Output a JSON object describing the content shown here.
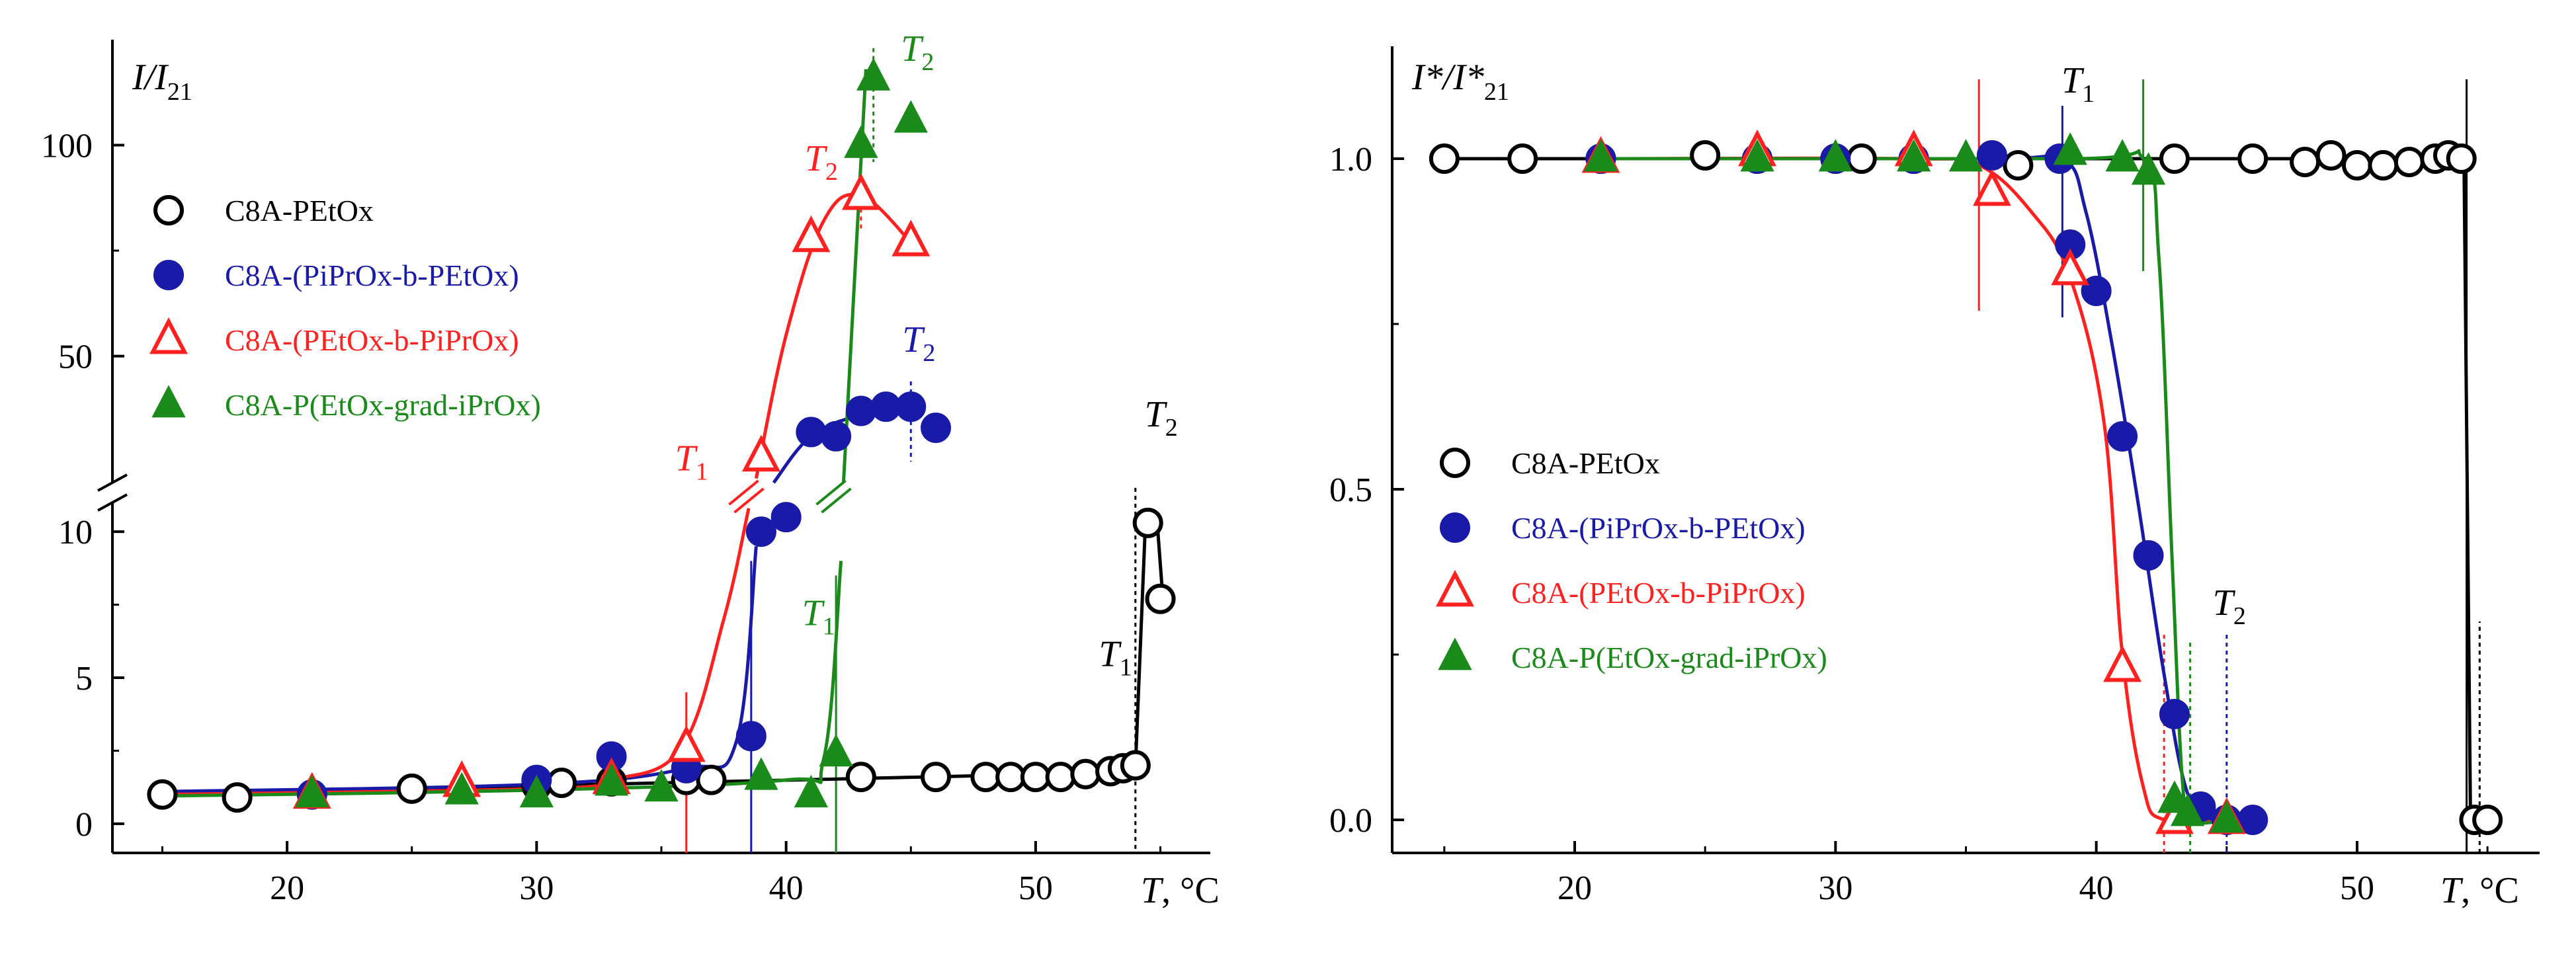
{
  "chart_data": [
    {
      "type": "scatter",
      "panel": "left",
      "ylabel_main": "I/I",
      "ylabel_sub": "21",
      "xlabel_var": "T",
      "xlabel_unit": ", °C",
      "xlim": [
        13,
        57
      ],
      "ylim_lower": [
        -1,
        11
      ],
      "ylim_upper": [
        20,
        125
      ],
      "axis_break_between": [
        11,
        20
      ],
      "xticks": [
        "20",
        "30",
        "40",
        "50"
      ],
      "yticks_lower": [
        "0",
        "5",
        "10"
      ],
      "yticks_upper": [
        "50",
        "100"
      ],
      "series": [
        {
          "name": "C8A-PEtOx",
          "color": "#000000",
          "marker": "open-circle",
          "x": [
            15,
            18,
            25,
            30,
            31,
            33,
            36,
            37,
            43,
            46,
            48,
            49,
            50,
            51,
            52,
            53,
            53.5,
            54,
            54.5,
            55
          ],
          "y": [
            1.0,
            0.9,
            1.2,
            1.3,
            1.4,
            1.45,
            1.5,
            1.5,
            1.6,
            1.6,
            1.6,
            1.6,
            1.6,
            1.6,
            1.7,
            1.8,
            1.9,
            2.0,
            10.3,
            7.7
          ]
        },
        {
          "name": "C8A-(PiPrOx-b-PEtOx)",
          "color": "#1a1aa8",
          "marker": "filled-circle",
          "x": [
            21,
            30,
            33,
            36,
            38.6,
            39,
            40,
            41,
            42,
            43,
            44,
            45,
            46
          ],
          "y": [
            1.0,
            1.5,
            2.3,
            1.9,
            3.0,
            10.0,
            10.5,
            32,
            31,
            37,
            38,
            38,
            33
          ]
        },
        {
          "name": "C8A-(PEtOx-b-PiPrOx)",
          "color": "#ff2020",
          "marker": "open-triangle",
          "x": [
            21,
            27,
            33,
            36,
            39,
            41,
            43,
            45
          ],
          "y": [
            1.0,
            1.4,
            1.5,
            2.6,
            26,
            78,
            88,
            77
          ]
        },
        {
          "name": "C8A-P(EtOx-grad-iPrOx)",
          "color": "#1a8a1a",
          "marker": "filled-triangle",
          "x": [
            21,
            27,
            30,
            33,
            35,
            39,
            41,
            42,
            43,
            43.5,
            45
          ],
          "y": [
            1.0,
            1.1,
            1.0,
            1.4,
            1.2,
            1.6,
            1.0,
            2.4,
            100,
            116,
            106
          ]
        }
      ],
      "annotations": [
        {
          "text": "T",
          "sub": "1",
          "color": "#ff2020",
          "x": 36
        },
        {
          "text": "T",
          "sub": "2",
          "color": "#ff2020",
          "x": 43
        },
        {
          "text": "T",
          "sub": "2",
          "color": "#1a1aa8",
          "x": 45
        },
        {
          "text": "T",
          "sub": "1",
          "color": "#1a8a1a",
          "x": 42
        },
        {
          "text": "T",
          "sub": "2",
          "color": "#1a8a1a",
          "x": 43.5
        },
        {
          "text": "T",
          "sub": "1",
          "color": "#000000",
          "x": 54
        },
        {
          "text": "T",
          "sub": "2",
          "color": "#000000",
          "x": 54
        }
      ]
    },
    {
      "type": "scatter",
      "panel": "right",
      "ylabel_main": "I*/I*",
      "ylabel_sub": "21",
      "xlabel_var": "T",
      "xlabel_unit": ", °C",
      "xlim": [
        13,
        57
      ],
      "ylim": [
        -0.05,
        1.17
      ],
      "xticks": [
        "20",
        "30",
        "40",
        "50"
      ],
      "yticks": [
        "0.0",
        "0.5",
        "1.0"
      ],
      "series": [
        {
          "name": "C8A-PEtOx",
          "color": "#000000",
          "marker": "open-circle",
          "x": [
            15,
            18,
            21,
            25,
            27,
            30,
            31,
            33,
            37,
            43,
            46,
            48,
            49,
            50,
            51,
            52,
            53,
            53.5,
            54,
            54.5,
            55
          ],
          "y": [
            1.0,
            1.0,
            1.0,
            1.005,
            1.0,
            1.0,
            1.0,
            1.0,
            0.99,
            1.0,
            1.0,
            0.995,
            1.005,
            0.99,
            0.99,
            0.995,
            1.0,
            1.005,
            1.0,
            0.0,
            0.0
          ]
        },
        {
          "name": "C8A-(PiPrOx-b-PEtOx)",
          "color": "#1a1aa8",
          "marker": "filled-circle",
          "x": [
            21,
            27,
            30,
            33,
            36,
            38.6,
            39,
            40,
            41,
            42,
            43,
            44,
            45,
            46
          ],
          "y": [
            1.0,
            1.0,
            1.0,
            1.0,
            1.005,
            1.0,
            0.87,
            0.8,
            0.58,
            0.4,
            0.16,
            0.02,
            0.0,
            0.0
          ]
        },
        {
          "name": "C8A-(PEtOx-b-PiPrOx)",
          "color": "#ff2020",
          "marker": "open-triangle",
          "x": [
            21,
            27,
            33,
            36,
            39,
            41,
            43,
            45
          ],
          "y": [
            1.0,
            1.01,
            1.01,
            0.95,
            0.83,
            0.23,
            0.0,
            0.0
          ]
        },
        {
          "name": "C8A-P(EtOx-grad-iPrOx)",
          "color": "#1a8a1a",
          "marker": "filled-triangle",
          "x": [
            21,
            27,
            30,
            33,
            35,
            39,
            41,
            42,
            43,
            43.5,
            45
          ],
          "y": [
            1.0,
            1.0,
            1.0,
            1.0,
            1.0,
            1.01,
            1.0,
            0.98,
            0.03,
            0.01,
            0.0
          ]
        }
      ],
      "annotations": [
        {
          "text": "T",
          "sub": "1",
          "color": "#000000",
          "x": 39
        },
        {
          "text": "T",
          "sub": "2",
          "color": "#000000",
          "x": 45
        }
      ]
    }
  ]
}
